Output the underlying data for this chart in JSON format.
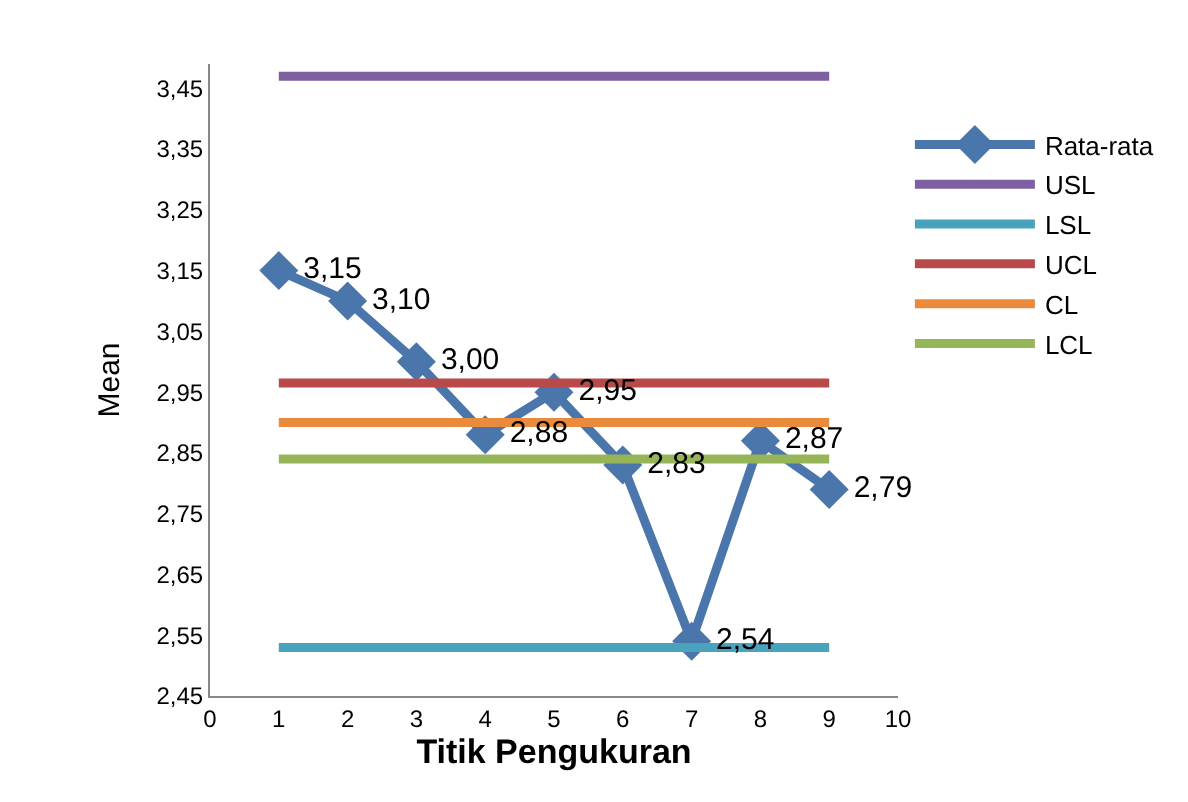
{
  "chart_data": {
    "type": "line",
    "xlabel": "Titik Pengukuran",
    "ylabel": "Mean",
    "x": [
      1,
      2,
      3,
      4,
      5,
      6,
      7,
      8,
      9
    ],
    "series": [
      {
        "name": "Rata-rata",
        "color": "#4a76ab",
        "marker": "diamond",
        "values": [
          3.15,
          3.1,
          3.0,
          2.88,
          2.95,
          2.83,
          2.54,
          2.87,
          2.79
        ],
        "value_labels": [
          "3,15",
          "3,10",
          "3,00",
          "2,88",
          "2,95",
          "2,83",
          "2,54",
          "2,87",
          "2,79"
        ]
      },
      {
        "name": "USL",
        "color": "#7e60a2",
        "marker": "none",
        "values": [
          3.47,
          3.47,
          3.47,
          3.47,
          3.47,
          3.47,
          3.47,
          3.47,
          3.47
        ]
      },
      {
        "name": "LSL",
        "color": "#4aa3bd",
        "marker": "none",
        "values": [
          2.53,
          2.53,
          2.53,
          2.53,
          2.53,
          2.53,
          2.53,
          2.53,
          2.53
        ]
      },
      {
        "name": "UCL",
        "color": "#b84b49",
        "marker": "none",
        "values": [
          2.965,
          2.965,
          2.965,
          2.965,
          2.965,
          2.965,
          2.965,
          2.965,
          2.965
        ]
      },
      {
        "name": "CL",
        "color": "#ea8a3c",
        "marker": "none",
        "values": [
          2.9,
          2.9,
          2.9,
          2.9,
          2.9,
          2.9,
          2.9,
          2.9,
          2.9
        ]
      },
      {
        "name": "LCL",
        "color": "#95b558",
        "marker": "none",
        "values": [
          2.84,
          2.84,
          2.84,
          2.84,
          2.84,
          2.84,
          2.84,
          2.84,
          2.84
        ]
      }
    ],
    "xlim": [
      0,
      10
    ],
    "xticks": [
      0,
      1,
      2,
      3,
      4,
      5,
      6,
      7,
      8,
      9,
      10
    ],
    "ylim": [
      2.45,
      3.49
    ],
    "yticks": [
      {
        "value": 2.45,
        "label": "2,45"
      },
      {
        "value": 2.55,
        "label": "2,55"
      },
      {
        "value": 2.65,
        "label": "2,65"
      },
      {
        "value": 2.75,
        "label": "2,75"
      },
      {
        "value": 2.85,
        "label": "2,85"
      },
      {
        "value": 2.95,
        "label": "2,95"
      },
      {
        "value": 3.05,
        "label": "3,05"
      },
      {
        "value": 3.15,
        "label": "3,15"
      },
      {
        "value": 3.25,
        "label": "3,25"
      },
      {
        "value": 3.35,
        "label": "3,35"
      },
      {
        "value": 3.45,
        "label": "3,45"
      }
    ],
    "legend": "right",
    "line_style": "solid"
  }
}
